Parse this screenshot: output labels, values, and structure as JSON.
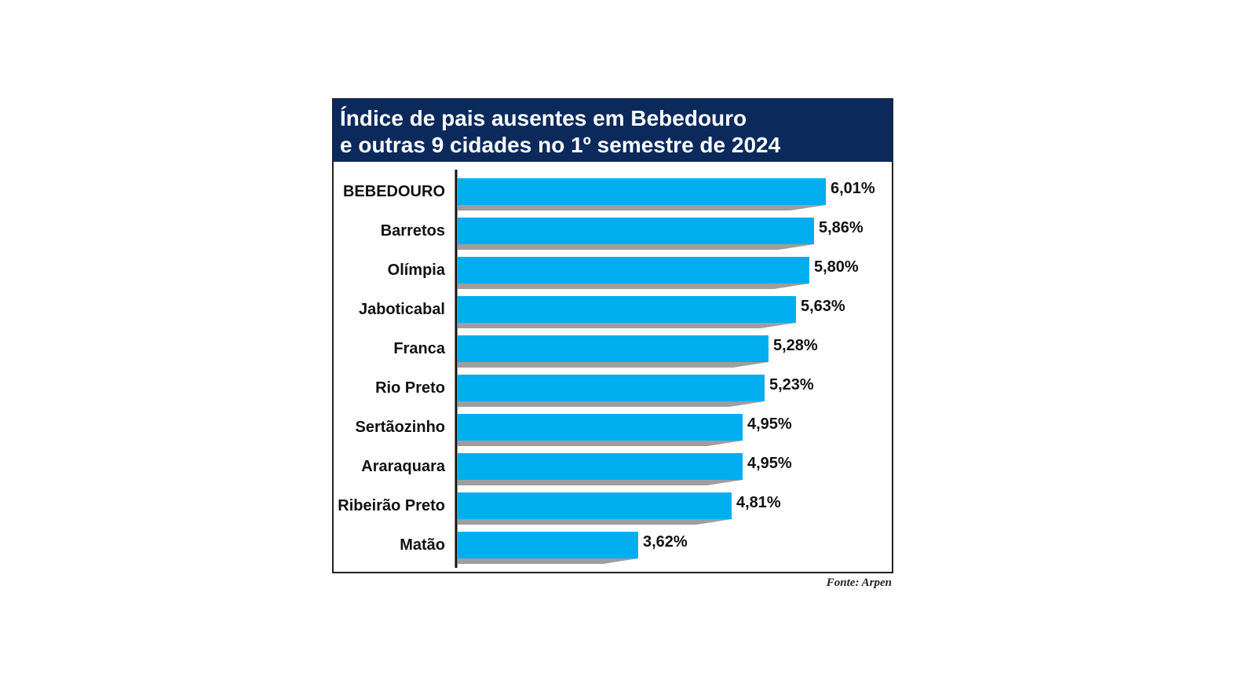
{
  "chart_data": {
    "type": "bar",
    "orientation": "horizontal",
    "title_lines": [
      "Índice de pais ausentes em Bebedouro",
      "e outras 9 cidades no 1º semestre de 2024"
    ],
    "categories": [
      "BEBEDOURO",
      "Barretos",
      "Olímpia",
      "Jaboticabal",
      "Franca",
      "Rio Preto",
      "Sertãozinho",
      "Araraquara",
      "Ribeirão Preto",
      "Matão"
    ],
    "values": [
      6.01,
      5.86,
      5.8,
      5.63,
      5.28,
      5.23,
      4.95,
      4.95,
      4.81,
      3.62
    ],
    "value_labels": [
      "6,01%",
      "5,86%",
      "5,80%",
      "5,63%",
      "5,28%",
      "5,23%",
      "4,95%",
      "4,95%",
      "4,81%",
      "3,62%"
    ],
    "unit": "%",
    "source": "Fonte: Arpen",
    "xlabel": "",
    "ylabel": "",
    "grid": false,
    "colors": {
      "bar": "#00aeef",
      "shadow": "#9e9e9e",
      "header": "#0b2a5b",
      "border": "#222222"
    }
  }
}
